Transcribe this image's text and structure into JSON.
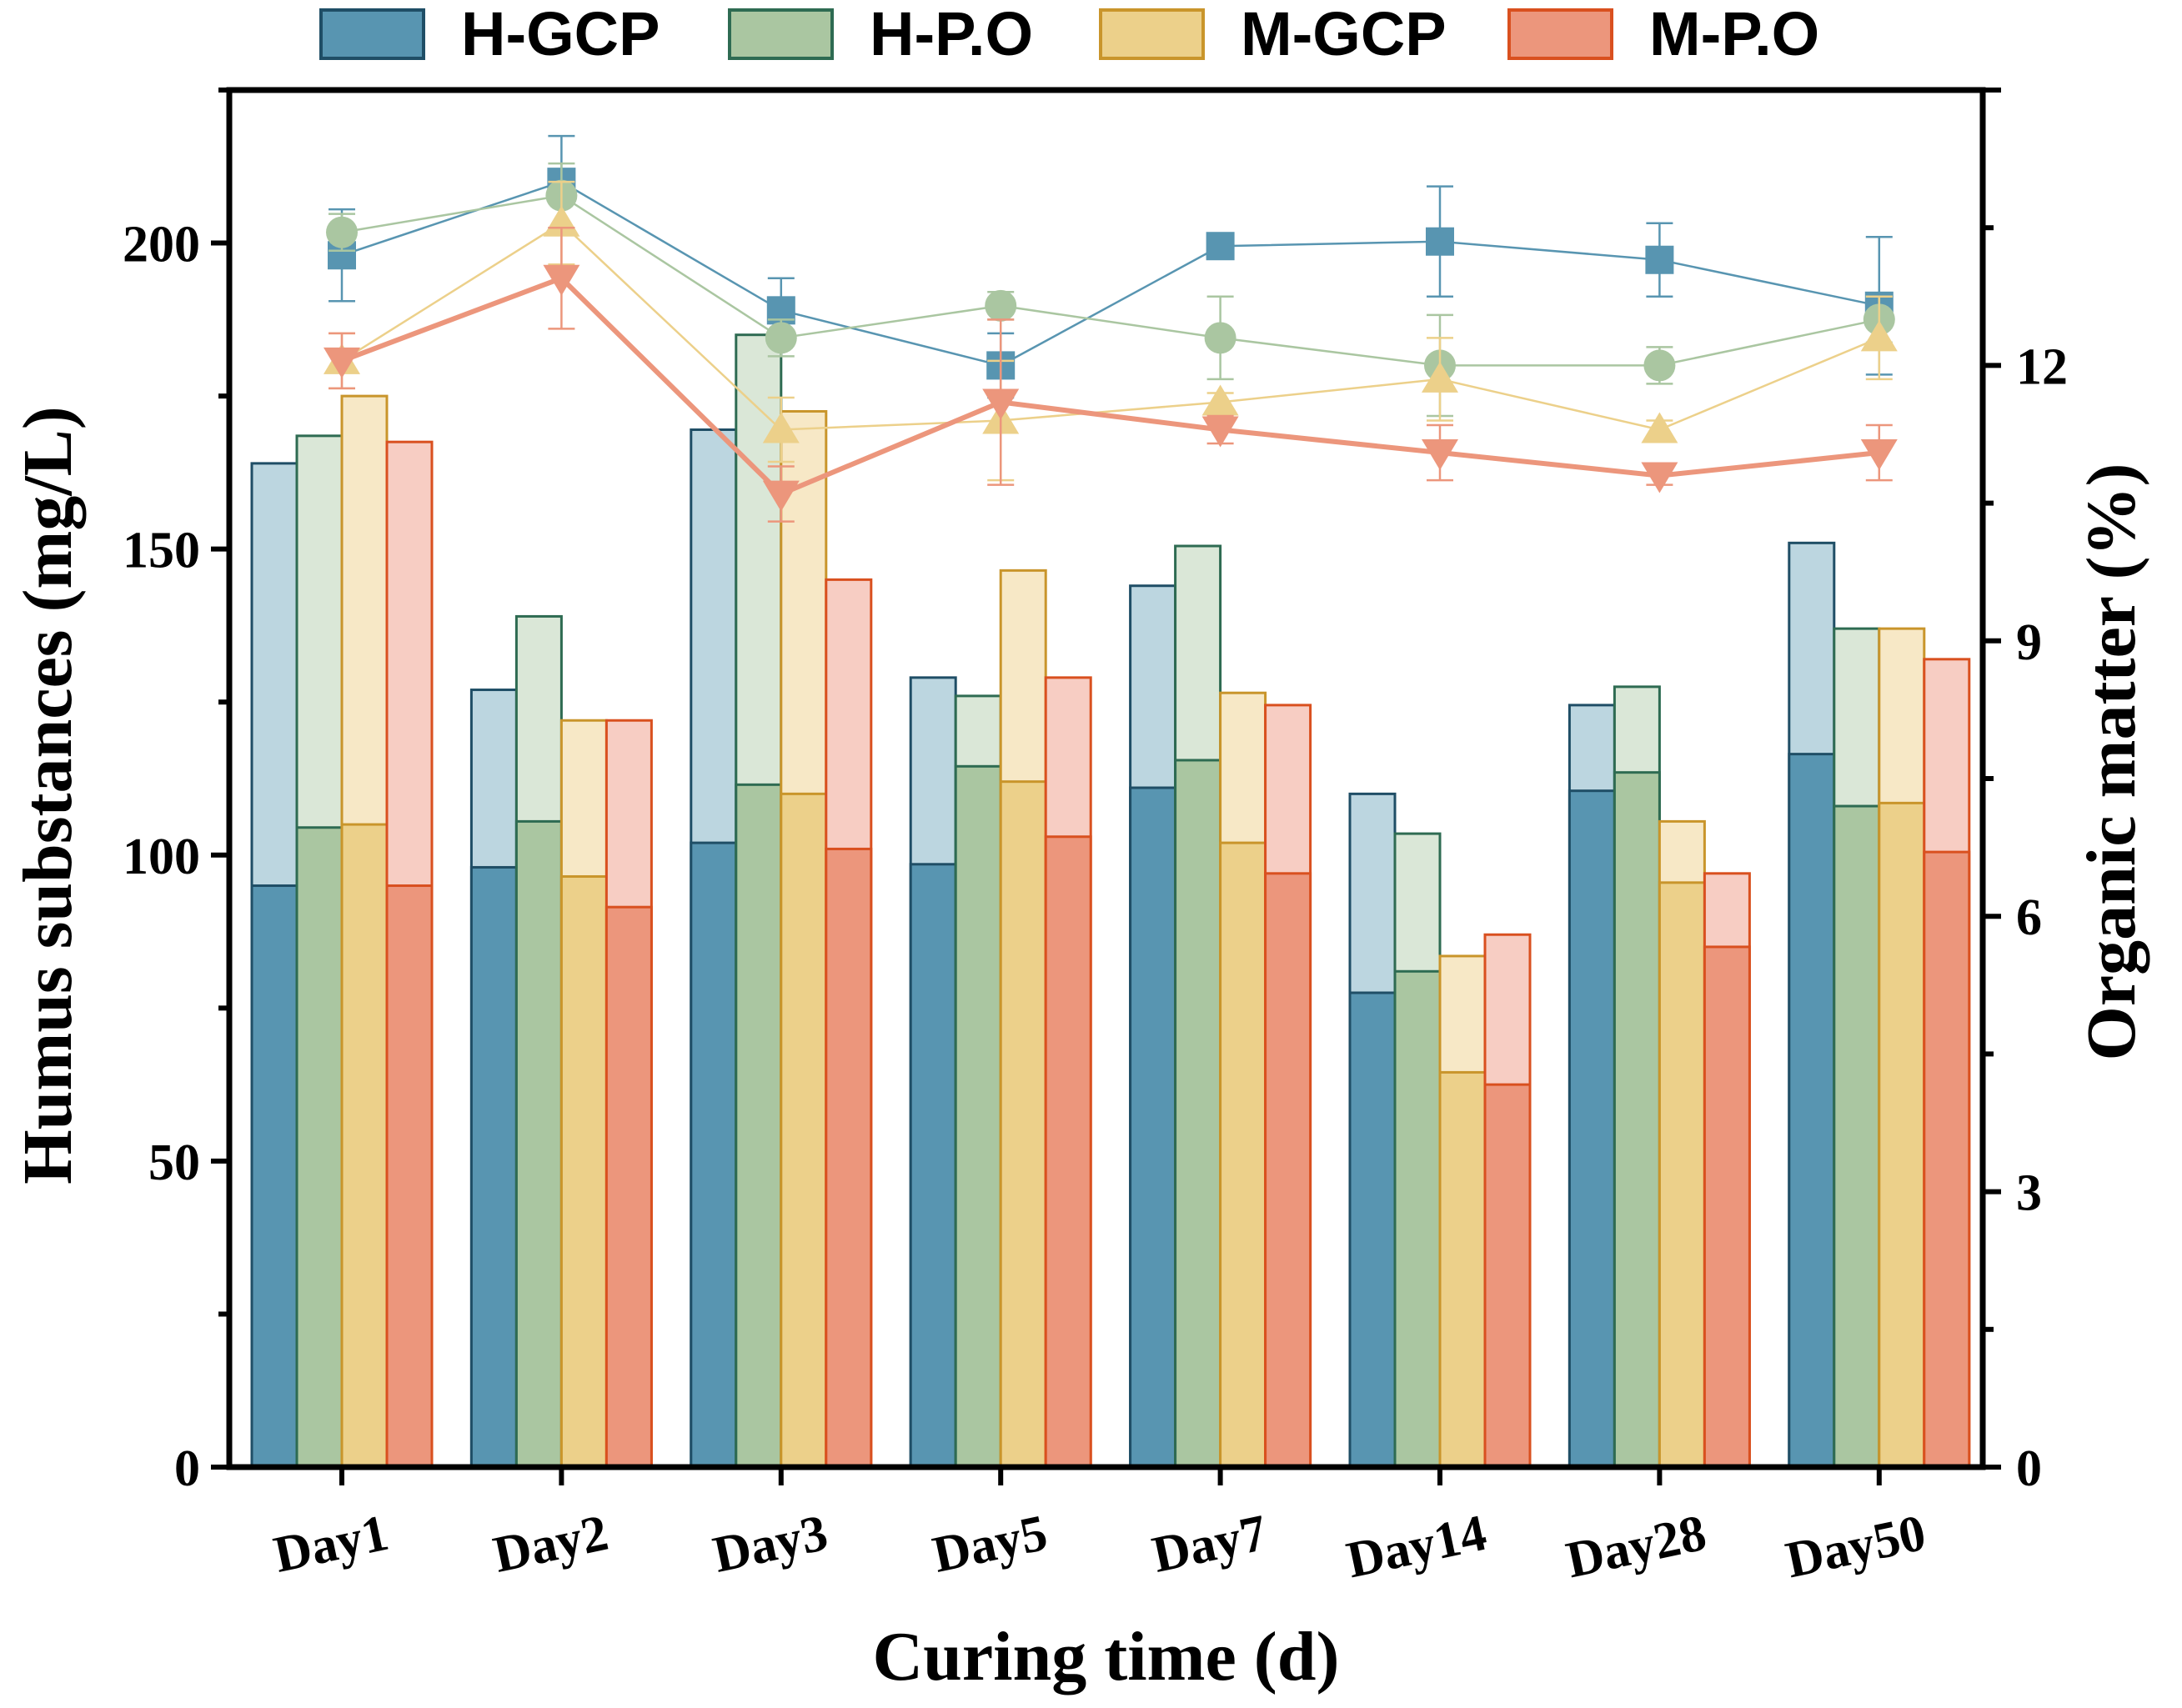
{
  "chart_data": {
    "type": "bar",
    "xlabel": "Curing time (d)",
    "ylabel_left": "Humus substances (mg/L)",
    "ylabel_right": "Organic matter (%)",
    "categories": [
      "Day1",
      "Day2",
      "Day3",
      "Day5",
      "Day7",
      "Day14",
      "Day28",
      "Day50"
    ],
    "left_axis": {
      "min": 0,
      "max": 225,
      "ticks": [
        "0",
        "50",
        "100",
        "150",
        "200"
      ]
    },
    "right_axis": {
      "min": 0,
      "max": 15,
      "ticks": [
        "0",
        "3",
        "6",
        "9",
        "12"
      ]
    },
    "legend": [
      "H-GCP",
      "H-P.O",
      "M-GCP",
      "M-P.O"
    ],
    "colors": {
      "H-GCP": {
        "fill": "#5895b1",
        "edge": "#1f4e66",
        "light": "#bcd6e0"
      },
      "H-P.O": {
        "fill": "#aac6a1",
        "edge": "#2e6b52",
        "light": "#dae7d7"
      },
      "M-GCP": {
        "fill": "#ecd08a",
        "edge": "#c9952b",
        "light": "#f7e8c6"
      },
      "M-P.O": {
        "fill": "#ec967c",
        "edge": "#d9501f",
        "light": "#f7cdc3"
      }
    },
    "bar_series": [
      {
        "name": "H-GCP",
        "lower": [
          95,
          98,
          102,
          98.5,
          111,
          77.5,
          110.5,
          116.5
        ],
        "total": [
          164,
          127,
          169.5,
          129,
          144,
          110,
          124.5,
          151
        ]
      },
      {
        "name": "H-P.O",
        "lower": [
          104.5,
          105.5,
          111.5,
          114.5,
          115.5,
          81,
          113.5,
          108
        ],
        "total": [
          168.5,
          139,
          185,
          126,
          150.5,
          103.5,
          127.5,
          137
        ]
      },
      {
        "name": "M-GCP",
        "lower": [
          105,
          96.5,
          110,
          112,
          102,
          64.5,
          95.5,
          108.5
        ],
        "total": [
          175,
          122,
          172.5,
          146.5,
          126.5,
          83.5,
          105.5,
          137
        ]
      },
      {
        "name": "M-P.O",
        "lower": [
          95,
          91.5,
          101,
          103,
          97,
          62.5,
          85,
          100.5
        ],
        "total": [
          167.5,
          122,
          145,
          129,
          124.5,
          87,
          97,
          132
        ]
      }
    ],
    "line_series": [
      {
        "name": "H-GCP",
        "marker": "square",
        "values": [
          13.2,
          14.0,
          12.6,
          12.0,
          13.3,
          13.35,
          13.15,
          12.65
        ],
        "errors": [
          0.5,
          0.5,
          0.35,
          0.35,
          0.1,
          0.6,
          0.4,
          0.75
        ]
      },
      {
        "name": "H-P.O",
        "marker": "circle",
        "values": [
          13.45,
          13.85,
          12.3,
          12.65,
          12.3,
          12.0,
          12.0,
          12.5
        ],
        "errors": [
          0.2,
          0.35,
          0.2,
          0.15,
          0.45,
          0.55,
          0.2,
          0.25
        ]
      },
      {
        "name": "M-GCP",
        "marker": "triangle-up",
        "values": [
          12.05,
          13.55,
          11.3,
          11.4,
          11.6,
          11.85,
          11.3,
          12.3
        ],
        "errors": [
          0.3,
          0.45,
          0.35,
          0.65,
          0.1,
          0.45,
          0.1,
          0.45
        ]
      },
      {
        "name": "M-P.O",
        "marker": "triangle-down",
        "values": [
          12.05,
          12.95,
          10.6,
          11.6,
          11.3,
          11.05,
          10.8,
          11.05
        ],
        "errors": [
          0.3,
          0.55,
          0.3,
          0.9,
          0.15,
          0.3,
          0.1,
          0.3
        ]
      }
    ]
  }
}
